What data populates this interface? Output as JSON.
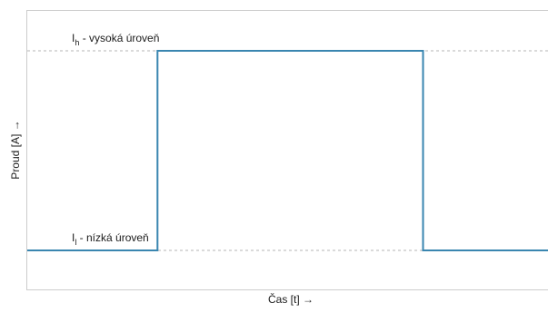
{
  "chart_data": {
    "type": "line",
    "title": "",
    "xlabel": "Čas [t] →",
    "ylabel": "Proud [A] →",
    "levels": {
      "high": {
        "main": "I",
        "sub": "h",
        "rest": " - vysoká úroveň",
        "value": 1
      },
      "low": {
        "main": "I",
        "sub": "l",
        "rest": " - nízká úroveň",
        "value": 0
      }
    },
    "xlim": [
      0,
      10
    ],
    "ylim": [
      -0.2,
      1.2
    ],
    "series": [
      {
        "x": [
          0,
          2.5,
          2.5,
          7.6,
          7.6,
          10
        ],
        "y": [
          0,
          0,
          1,
          1,
          0,
          0
        ]
      }
    ],
    "line_color": "#3a86b0",
    "grid": false
  }
}
